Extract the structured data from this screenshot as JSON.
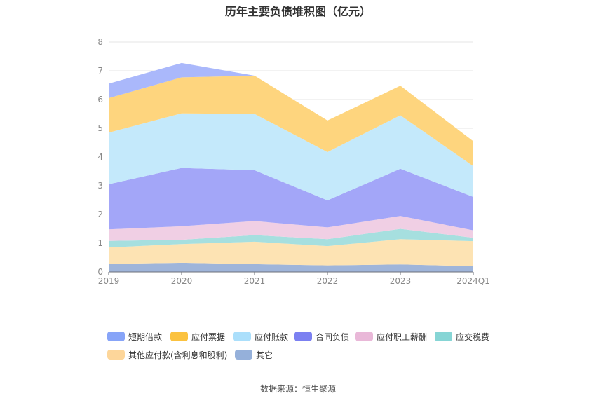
{
  "chart_data": {
    "type": "area",
    "stacked": true,
    "title": "历年主要负债堆积图（亿元）",
    "categories": [
      "2019",
      "2020",
      "2021",
      "2022",
      "2023",
      "2024Q1"
    ],
    "ylim": [
      0,
      8
    ],
    "yticks": [
      "0",
      "1",
      "2",
      "3",
      "4",
      "5",
      "6",
      "7",
      "8"
    ],
    "grid": true,
    "legend_position": "bottom",
    "series": [
      {
        "name": "其它",
        "color": "#9fb5da",
        "values": [
          0.28,
          0.32,
          0.27,
          0.23,
          0.26,
          0.2
        ]
      },
      {
        "name": "其他应付款(含利息和股利)",
        "color": "#fde3b3",
        "values": [
          0.57,
          0.65,
          0.78,
          0.67,
          0.88,
          0.87
        ]
      },
      {
        "name": "应交税费",
        "color": "#a6dfdf",
        "values": [
          0.23,
          0.15,
          0.23,
          0.24,
          0.36,
          0.12
        ]
      },
      {
        "name": "应付职工薪酬",
        "color": "#f0cfe4",
        "values": [
          0.4,
          0.47,
          0.49,
          0.41,
          0.45,
          0.26
        ]
      },
      {
        "name": "合同负债",
        "color": "#a3a6f8",
        "values": [
          1.57,
          2.03,
          1.77,
          0.94,
          1.64,
          1.16
        ]
      },
      {
        "name": "应付账款",
        "color": "#c4e9fb",
        "values": [
          1.8,
          1.9,
          1.96,
          1.68,
          1.86,
          1.07
        ]
      },
      {
        "name": "应付票据",
        "color": "#fed57e",
        "values": [
          1.2,
          1.25,
          1.33,
          1.1,
          1.03,
          0.87
        ]
      },
      {
        "name": "短期借款",
        "color": "#aab8fb",
        "values": [
          0.5,
          0.5,
          0.0,
          0.0,
          0.0,
          0.0
        ]
      }
    ]
  },
  "legend": {
    "items": [
      {
        "label": "短期借款",
        "color": "#87a4f8"
      },
      {
        "label": "应付票据",
        "color": "#fbc23f"
      },
      {
        "label": "应付账款",
        "color": "#abdffb"
      },
      {
        "label": "合同负债",
        "color": "#7b80f1"
      },
      {
        "label": "应付职工薪酬",
        "color": "#e9b8d8"
      },
      {
        "label": "应交税费",
        "color": "#86d5d5"
      },
      {
        "label": "其他应付款(含利息和股利)",
        "color": "#fdd69a"
      },
      {
        "label": "其它",
        "color": "#95b0da"
      }
    ]
  },
  "footer": {
    "source": "数据来源：恒生聚源"
  }
}
